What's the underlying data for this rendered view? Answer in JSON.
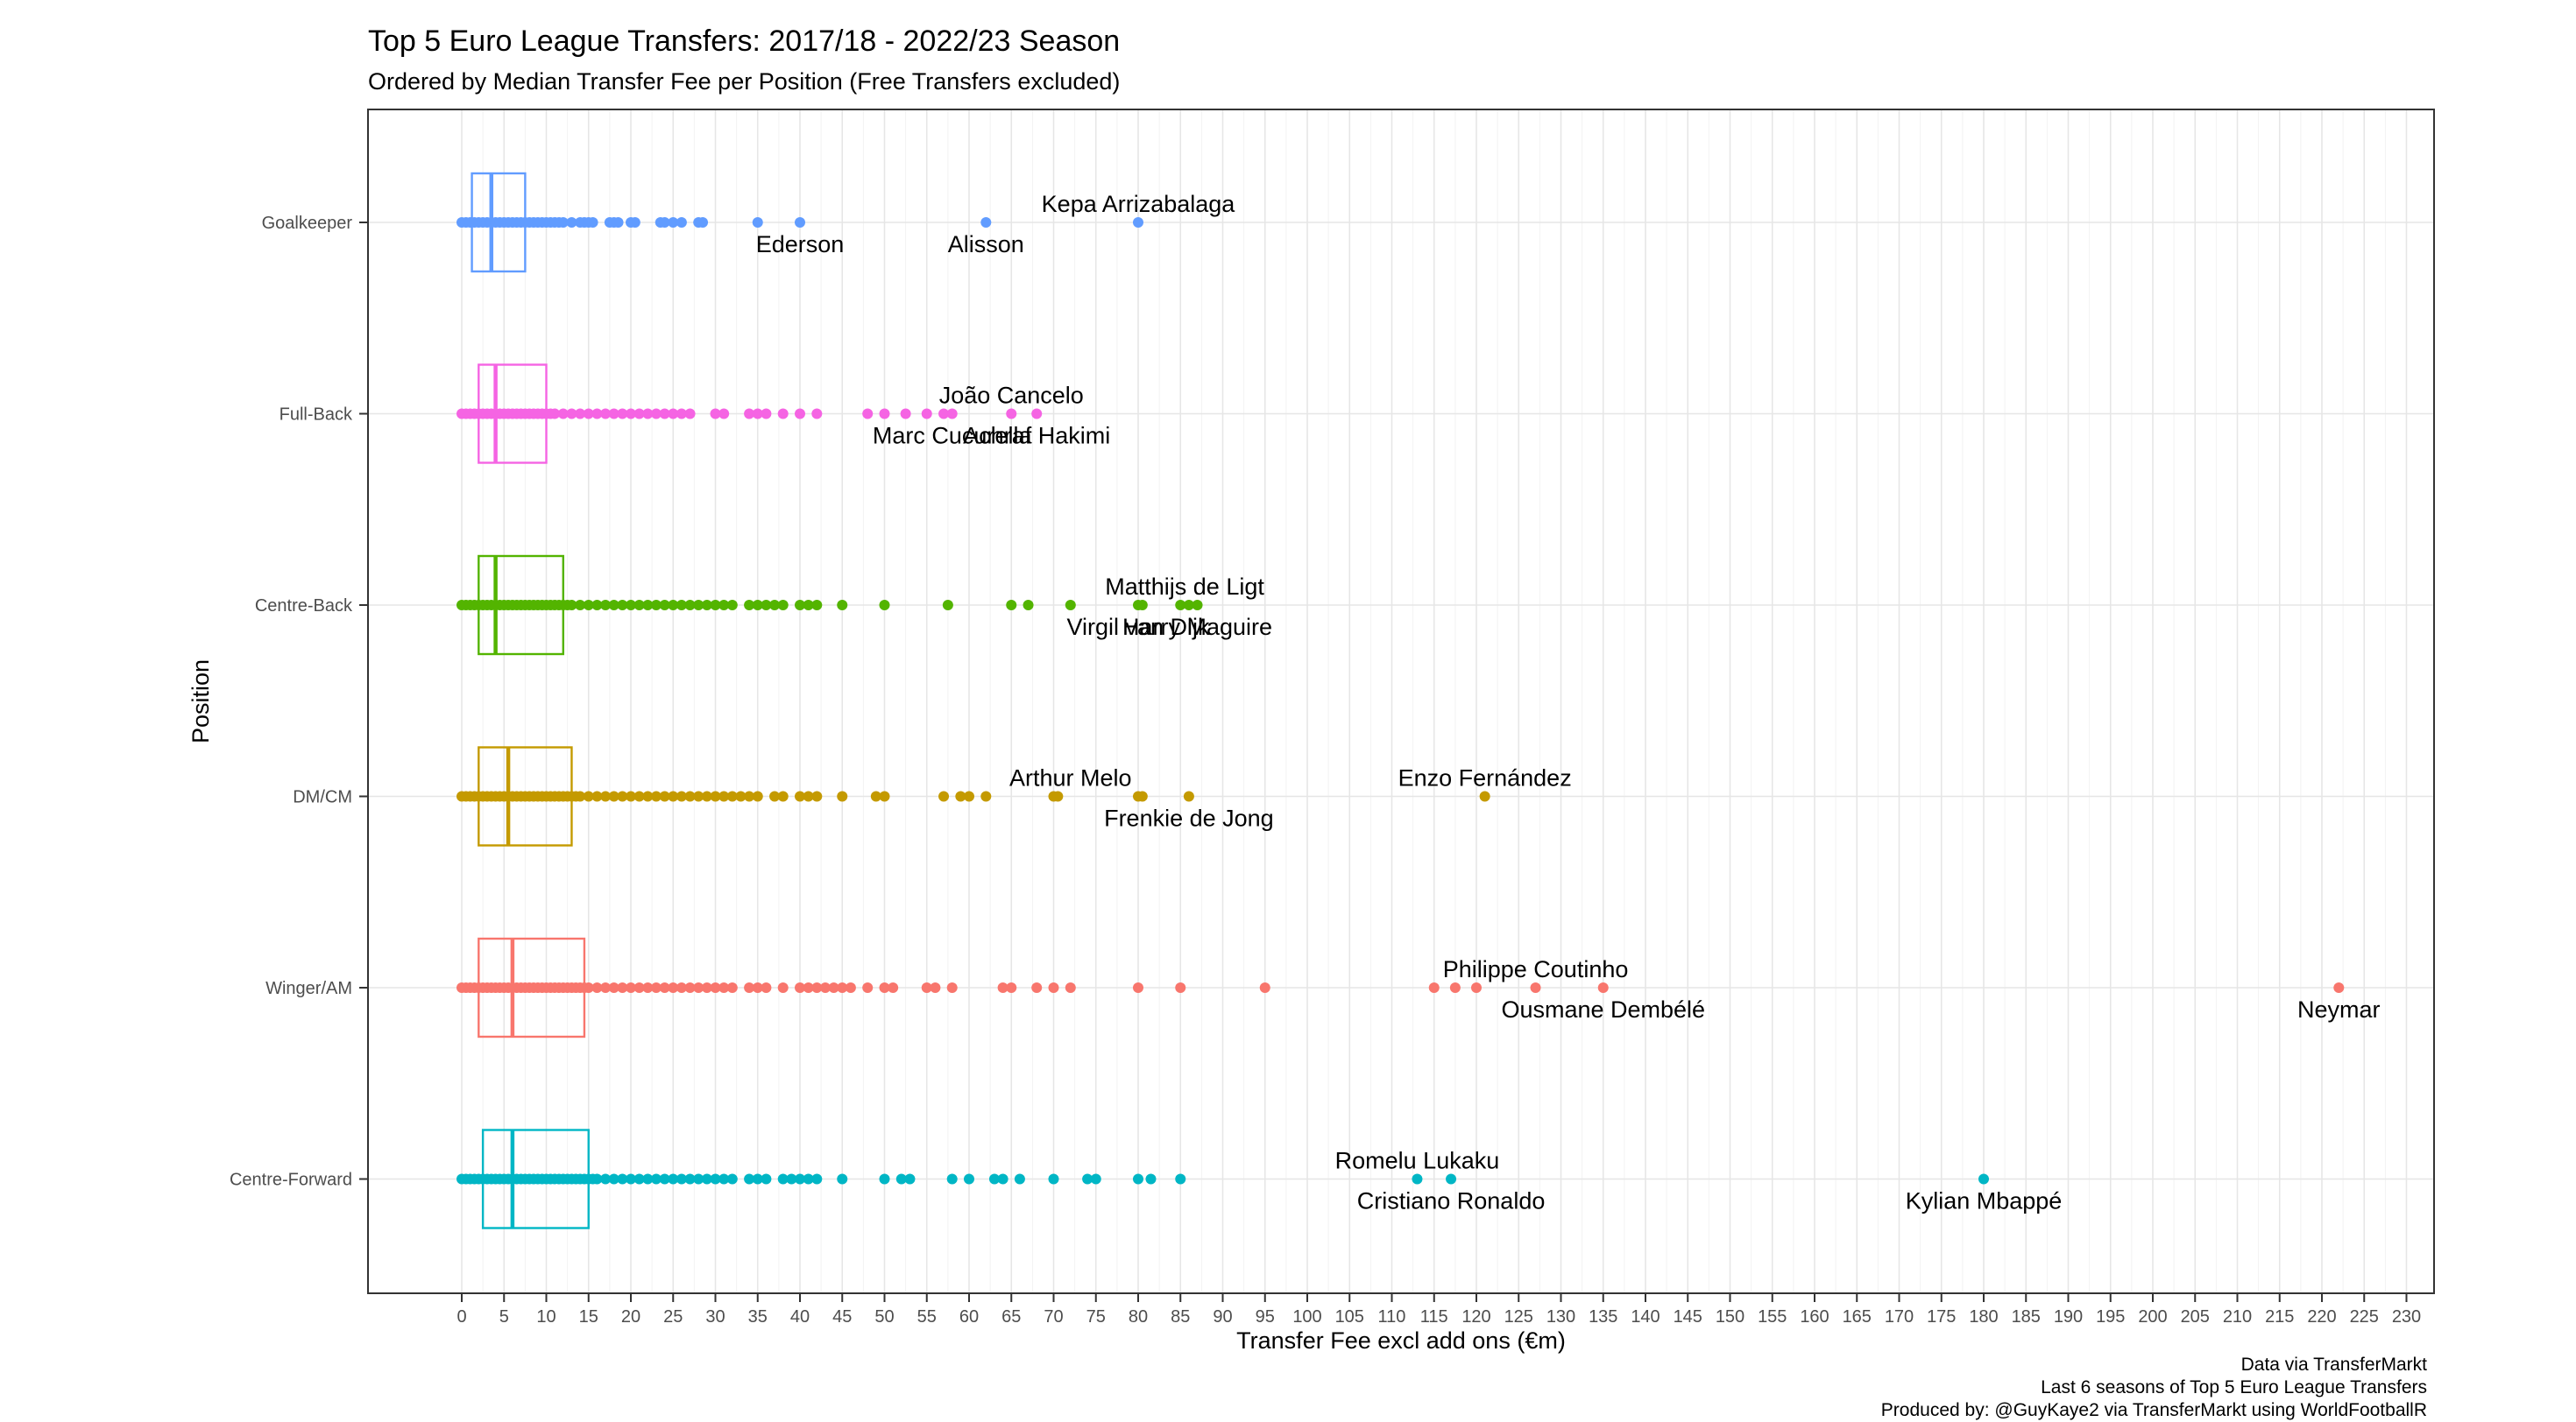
{
  "title": "Top 5 Euro League Transfers: 2017/18 - 2022/23 Season",
  "subtitle": "Ordered by Median Transfer Fee per Position (Free Transfers excluded)",
  "caption": [
    "Data via TransferMarkt",
    "Last 6 seasons of Top 5 Euro League Transfers",
    "Produced by: @GuyKaye2 via TransferMarkt using WorldFootballR"
  ],
  "chart_data": {
    "type": "box",
    "xlabel": "Transfer Fee excl add ons (€m)",
    "ylabel": "Position",
    "xlim": [
      -10,
      234
    ],
    "x_ticks": [
      0,
      5,
      10,
      15,
      20,
      25,
      30,
      35,
      40,
      45,
      50,
      55,
      60,
      65,
      70,
      75,
      80,
      85,
      90,
      95,
      100,
      105,
      110,
      115,
      120,
      125,
      130,
      135,
      140,
      145,
      150,
      155,
      160,
      165,
      170,
      175,
      180,
      185,
      190,
      195,
      200,
      205,
      210,
      215,
      220,
      225,
      230
    ],
    "grid": true,
    "legend": "none",
    "categories": [
      "Goalkeeper",
      "Full-Back",
      "Centre-Back",
      "DM/CM",
      "Winger/AM",
      "Centre-Forward"
    ],
    "series": [
      {
        "category": "Goalkeeper",
        "color": "#619CFF",
        "box": {
          "q1": 1.2,
          "median": 3.5,
          "q3": 7.5
        },
        "outliers": [
          8,
          8.5,
          9,
          9.5,
          10,
          10.5,
          11,
          11.5,
          12,
          13,
          14,
          14.5,
          15,
          15.5,
          17.5,
          18,
          18.5,
          20,
          20.5,
          23.5,
          24,
          25,
          26,
          28,
          28.5,
          35,
          40,
          62,
          80
        ],
        "labels": [
          {
            "text": "Ederson",
            "x": 40,
            "pos": "below"
          },
          {
            "text": "Alisson",
            "x": 62,
            "pos": "below"
          },
          {
            "text": "Kepa Arrizabalaga",
            "x": 80,
            "pos": "above"
          }
        ]
      },
      {
        "category": "Full-Back",
        "color": "#F564E3",
        "box": {
          "q1": 2,
          "median": 4,
          "q3": 10
        },
        "outliers": [
          10.5,
          11,
          12,
          13,
          14,
          15,
          16,
          17,
          18,
          19,
          20,
          21,
          22,
          23,
          24,
          25,
          26,
          27,
          30,
          31,
          34,
          35,
          36,
          38,
          40,
          42,
          48,
          50,
          52.5,
          55,
          57,
          58,
          65,
          68
        ],
        "labels": [
          {
            "text": "João Cancelo",
            "x": 65,
            "pos": "above"
          },
          {
            "text": "Marc Cucurella",
            "x": 58,
            "pos": "below"
          },
          {
            "text": "Achraf Hakimi",
            "x": 68,
            "pos": "below"
          }
        ]
      },
      {
        "category": "Centre-Back",
        "color": "#53B400",
        "box": {
          "q1": 2,
          "median": 4,
          "q3": 12
        },
        "outliers": [
          12.5,
          13,
          14,
          15,
          16,
          17,
          18,
          19,
          20,
          21,
          22,
          23,
          24,
          25,
          26,
          27,
          28,
          29,
          30,
          31,
          32,
          34,
          35,
          36,
          37,
          38,
          40,
          41,
          42,
          45,
          50,
          57.5,
          65,
          67,
          72,
          80,
          80.5,
          85,
          86,
          87
        ],
        "labels": [
          {
            "text": "Matthijs de Ligt",
            "x": 85.5,
            "pos": "above"
          },
          {
            "text": "Virgil van Dijk",
            "x": 80,
            "pos": "below"
          },
          {
            "text": "Harry Maguire",
            "x": 87,
            "pos": "below"
          }
        ]
      },
      {
        "category": "DM/CM",
        "color": "#C49A00",
        "box": {
          "q1": 2,
          "median": 5.5,
          "q3": 13
        },
        "outliers": [
          13.5,
          14,
          15,
          16,
          17,
          18,
          19,
          20,
          21,
          22,
          23,
          24,
          25,
          26,
          27,
          28,
          29,
          30,
          31,
          32,
          33,
          34,
          35,
          37,
          38,
          40,
          41,
          42,
          45,
          49,
          50,
          57,
          59,
          60,
          62,
          70,
          70.5,
          80,
          80.5,
          86,
          121
        ],
        "labels": [
          {
            "text": "Arthur Melo",
            "x": 72,
            "pos": "above"
          },
          {
            "text": "Frenkie de Jong",
            "x": 86,
            "pos": "below"
          },
          {
            "text": "Enzo Fernández",
            "x": 121,
            "pos": "above"
          }
        ]
      },
      {
        "category": "Winger/AM",
        "color": "#F8766D",
        "box": {
          "q1": 2,
          "median": 6,
          "q3": 14.5
        },
        "outliers": [
          15,
          16,
          17,
          18,
          19,
          20,
          21,
          22,
          23,
          24,
          25,
          26,
          27,
          28,
          29,
          30,
          31,
          32,
          34,
          35,
          36,
          38,
          40,
          41,
          42,
          43,
          44,
          45,
          46,
          48,
          50,
          51,
          55,
          56,
          58,
          64,
          65,
          68,
          70,
          72,
          80,
          85,
          95,
          115,
          117.5,
          120,
          127,
          135,
          222
        ],
        "labels": [
          {
            "text": "Philippe Coutinho",
            "x": 127,
            "pos": "above"
          },
          {
            "text": "Ousmane Dembélé",
            "x": 135,
            "pos": "below"
          },
          {
            "text": "Neymar",
            "x": 222,
            "pos": "below"
          }
        ]
      },
      {
        "category": "Centre-Forward",
        "color": "#00B6C5",
        "box": {
          "q1": 2.5,
          "median": 6,
          "q3": 15
        },
        "outliers": [
          15.5,
          16,
          17,
          18,
          19,
          20,
          21,
          22,
          23,
          24,
          25,
          26,
          27,
          28,
          29,
          30,
          31,
          32,
          34,
          35,
          36,
          38,
          39,
          40,
          41,
          42,
          45,
          50,
          52,
          53,
          58,
          60,
          63,
          64,
          66,
          70,
          74,
          75,
          80,
          81.5,
          85,
          113,
          117,
          180
        ],
        "labels": [
          {
            "text": "Romelu Lukaku",
            "x": 113,
            "pos": "above"
          },
          {
            "text": "Cristiano Ronaldo",
            "x": 117,
            "pos": "below"
          },
          {
            "text": "Kylian Mbappé",
            "x": 180,
            "pos": "below"
          }
        ]
      }
    ]
  }
}
